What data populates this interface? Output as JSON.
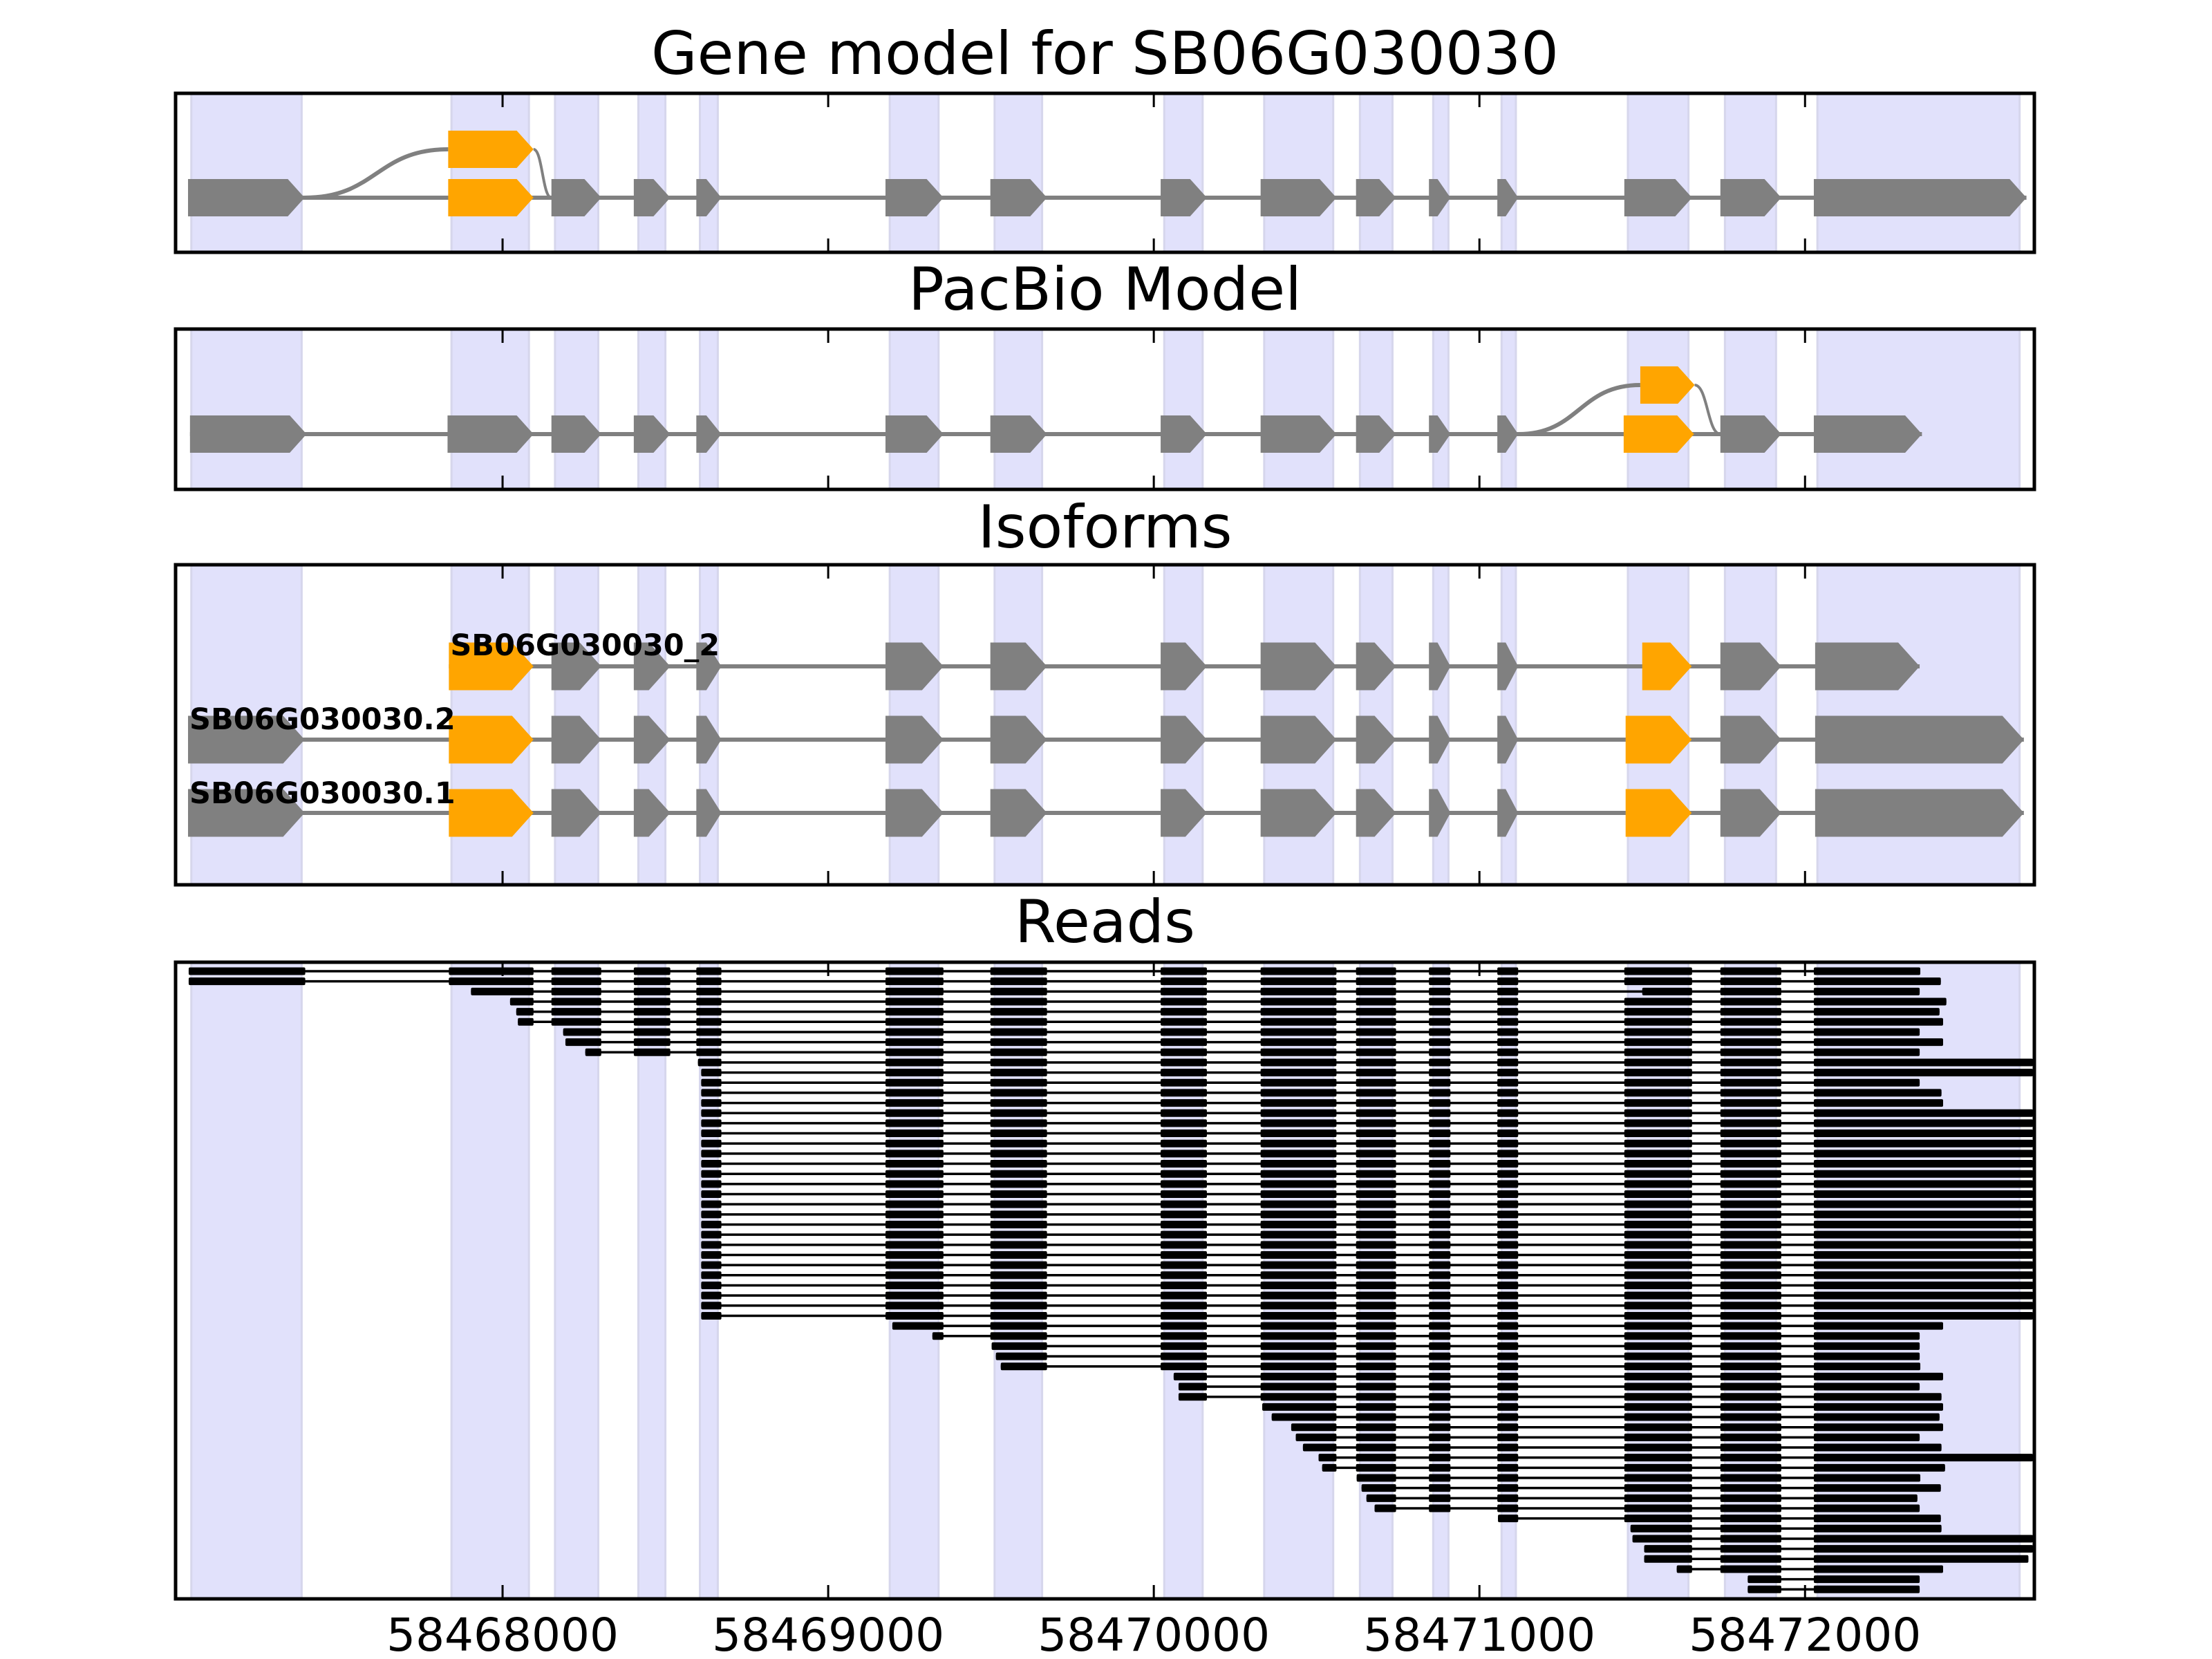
{
  "chart_data": {
    "type": "gene-structure",
    "xlim": [
      58467000,
      58472700
    ],
    "xticks": [
      58468000,
      58469000,
      58470000,
      58471000,
      58472000
    ],
    "xtick_labels": [
      "58468000",
      "58469000",
      "58470000",
      "58471000",
      "58472000"
    ],
    "colors": {
      "exon": "#808080",
      "alt_exon": "#ffa500",
      "intron": "#808080",
      "band": "#e1e1fb",
      "band_edge": "#d6d6ec",
      "read": "#000000",
      "frame": "#000000"
    },
    "exon_bands": [
      [
        58467044,
        58467383
      ],
      [
        58467843,
        58468081
      ],
      [
        58468161,
        58468294
      ],
      [
        58468417,
        58468500
      ],
      [
        58468606,
        58468661
      ],
      [
        58469189,
        58469339
      ],
      [
        58469511,
        58469657
      ],
      [
        58470032,
        58470150
      ],
      [
        58470339,
        58470551
      ],
      [
        58470633,
        58470733
      ],
      [
        58470858,
        58470905
      ],
      [
        58471068,
        58471112
      ],
      [
        58471456,
        58471642
      ],
      [
        58471754,
        58471911
      ],
      [
        58472038,
        58472659
      ]
    ],
    "panels": [
      {
        "id": "gene-model",
        "title": "Gene model for SB06G030030",
        "main_track": {
          "exons": [
            [
              58467034,
              58467392,
              "exon"
            ],
            [
              58467833,
              58468095,
              "alt"
            ],
            [
              58468150,
              58468303,
              "exon"
            ],
            [
              58468403,
              58468515,
              "exon"
            ],
            [
              58468595,
              58468672,
              "exon"
            ],
            [
              58469176,
              58469354,
              "exon"
            ],
            [
              58469498,
              58469672,
              "exon"
            ],
            [
              58470021,
              58470163,
              "exon"
            ],
            [
              58470328,
              58470561,
              "exon"
            ],
            [
              58470621,
              58470744,
              "exon"
            ],
            [
              58470845,
              58470911,
              "exon"
            ],
            [
              58471055,
              58471119,
              "exon"
            ],
            [
              58471445,
              58471653,
              "exon"
            ],
            [
              58471740,
              58471927,
              "exon"
            ],
            [
              58472027,
              58472680,
              "exon"
            ]
          ]
        },
        "alt_event": {
          "exon": [
            58467833,
            58468095
          ],
          "from": 58467392,
          "to": 58468150
        }
      },
      {
        "id": "pacbio-model",
        "title": "PacBio Model",
        "main_track": {
          "exons": [
            [
              58467040,
              58467398,
              "exon"
            ],
            [
              58467831,
              58468095,
              "exon"
            ],
            [
              58468150,
              58468303,
              "exon"
            ],
            [
              58468403,
              58468515,
              "exon"
            ],
            [
              58468595,
              58468672,
              "exon"
            ],
            [
              58469176,
              58469354,
              "exon"
            ],
            [
              58469498,
              58469672,
              "exon"
            ],
            [
              58470021,
              58470163,
              "exon"
            ],
            [
              58470328,
              58470561,
              "exon"
            ],
            [
              58470621,
              58470744,
              "exon"
            ],
            [
              58470845,
              58470911,
              "exon"
            ],
            [
              58471055,
              58471119,
              "exon"
            ],
            [
              58471443,
              58471659,
              "alt"
            ],
            [
              58471740,
              58471927,
              "exon"
            ],
            [
              58472027,
              58472359,
              "exon"
            ]
          ]
        },
        "alt_event": {
          "exon": [
            58471494,
            58471661
          ],
          "from": 58471119,
          "to": 58471740
        }
      },
      {
        "id": "isoforms",
        "title": "Isoforms",
        "isoforms": [
          {
            "name": "SB06G030030_2",
            "exons": [
              [
                58467835,
                58468095,
                "alt"
              ],
              [
                58468150,
                58468303,
                "exon"
              ],
              [
                58468403,
                58468515,
                "exon"
              ],
              [
                58468595,
                58468672,
                "exon"
              ],
              [
                58469176,
                58469354,
                "exon"
              ],
              [
                58469498,
                58469672,
                "exon"
              ],
              [
                58470021,
                58470163,
                "exon"
              ],
              [
                58470328,
                58470561,
                "exon"
              ],
              [
                58470621,
                58470744,
                "exon"
              ],
              [
                58470845,
                58470911,
                "exon"
              ],
              [
                58471055,
                58471119,
                "exon"
              ],
              [
                58471500,
                58471652,
                "alt"
              ],
              [
                58471740,
                58471927,
                "exon"
              ],
              [
                58472031,
                58472352,
                "exon"
              ]
            ]
          },
          {
            "name": "SB06G030030.2",
            "exons": [
              [
                58467034,
                58467392,
                "exon"
              ],
              [
                58467835,
                58468095,
                "alt"
              ],
              [
                58468150,
                58468303,
                "exon"
              ],
              [
                58468403,
                58468515,
                "exon"
              ],
              [
                58468595,
                58468672,
                "exon"
              ],
              [
                58469176,
                58469354,
                "exon"
              ],
              [
                58469498,
                58469672,
                "exon"
              ],
              [
                58470021,
                58470163,
                "exon"
              ],
              [
                58470328,
                58470561,
                "exon"
              ],
              [
                58470621,
                58470744,
                "exon"
              ],
              [
                58470845,
                58470911,
                "exon"
              ],
              [
                58471055,
                58471119,
                "exon"
              ],
              [
                58471449,
                58471652,
                "alt"
              ],
              [
                58471740,
                58471927,
                "exon"
              ],
              [
                58472031,
                58472672,
                "exon"
              ]
            ]
          },
          {
            "name": "SB06G030030.1",
            "exons": [
              [
                58467034,
                58467392,
                "exon"
              ],
              [
                58467835,
                58468095,
                "alt"
              ],
              [
                58468150,
                58468303,
                "exon"
              ],
              [
                58468403,
                58468515,
                "exon"
              ],
              [
                58468595,
                58468672,
                "exon"
              ],
              [
                58469176,
                58469354,
                "exon"
              ],
              [
                58469498,
                58469672,
                "exon"
              ],
              [
                58470021,
                58470163,
                "exon"
              ],
              [
                58470328,
                58470561,
                "exon"
              ],
              [
                58470621,
                58470744,
                "exon"
              ],
              [
                58470845,
                58470911,
                "exon"
              ],
              [
                58471055,
                58471119,
                "exon"
              ],
              [
                58471449,
                58471652,
                "alt"
              ],
              [
                58471740,
                58471927,
                "exon"
              ],
              [
                58472031,
                58472672,
                "exon"
              ]
            ]
          }
        ]
      },
      {
        "id": "reads",
        "title": "Reads",
        "read_blocks": [
          [
            58467036,
            58467394
          ],
          [
            58467835,
            58468095
          ],
          [
            58468150,
            58468303
          ],
          [
            58468403,
            58468515
          ],
          [
            58468595,
            58468672
          ],
          [
            58469176,
            58469354
          ],
          [
            58469498,
            58469672
          ],
          [
            58470021,
            58470163
          ],
          [
            58470328,
            58470561
          ],
          [
            58470621,
            58470744
          ],
          [
            58470845,
            58470911
          ],
          [
            58471055,
            58471119
          ],
          [
            58471445,
            58471653
          ],
          [
            58471740,
            58471927
          ],
          [
            58472027,
            58472700
          ]
        ],
        "reads": [
          [
            58467036,
            58472354
          ],
          [
            58467036,
            58472417
          ],
          [
            58467903,
            58472352,
            "alt13"
          ],
          [
            58468023,
            58472434
          ],
          [
            58468042,
            58472413
          ],
          [
            58468047,
            58472424
          ],
          [
            58468186,
            58472352
          ],
          [
            58468193,
            58472424
          ],
          [
            58468254,
            58472352
          ],
          [
            58468600,
            58472700
          ],
          [
            58468610,
            58472700
          ],
          [
            58468610,
            58472352
          ],
          [
            58468610,
            58472419
          ],
          [
            58468610,
            58472424
          ],
          [
            58468610,
            58472700
          ],
          [
            58468610,
            58472700
          ],
          [
            58468610,
            58472700
          ],
          [
            58468610,
            58472700
          ],
          [
            58468610,
            58472700
          ],
          [
            58468610,
            58472700
          ],
          [
            58468610,
            58472700
          ],
          [
            58468610,
            58472700
          ],
          [
            58468610,
            58472700
          ],
          [
            58468610,
            58472700
          ],
          [
            58468610,
            58472700
          ],
          [
            58468610,
            58472700
          ],
          [
            58468610,
            58472700
          ],
          [
            58468610,
            58472700
          ],
          [
            58468610,
            58472700
          ],
          [
            58468610,
            58472700
          ],
          [
            58468610,
            58472700
          ],
          [
            58468610,
            58472700
          ],
          [
            58468610,
            58472700
          ],
          [
            58468610,
            58472700
          ],
          [
            58468610,
            58472700
          ],
          [
            58469197,
            58472424
          ],
          [
            58469320,
            58472352
          ],
          [
            58469502,
            58472352
          ],
          [
            58469515,
            58472352
          ],
          [
            58469530,
            58472354
          ],
          [
            58470061,
            58472424
          ],
          [
            58470076,
            58472352
          ],
          [
            58470076,
            58472419
          ],
          [
            58470333,
            58472424
          ],
          [
            58470362,
            58472413
          ],
          [
            58470422,
            58472424
          ],
          [
            58470436,
            58472352
          ],
          [
            58470458,
            58472419
          ],
          [
            58470506,
            58472700
          ],
          [
            58470517,
            58472430
          ],
          [
            58470623,
            58472354
          ],
          [
            58470638,
            58472417
          ],
          [
            58470653,
            58472345
          ],
          [
            58470678,
            58472352
          ],
          [
            58471057,
            58472417
          ],
          [
            58471464,
            58472419
          ],
          [
            58471470,
            58472700
          ],
          [
            58471506,
            58472700
          ],
          [
            58471506,
            58472686
          ],
          [
            58471606,
            58472424
          ],
          [
            58471824,
            58472352
          ],
          [
            58471824,
            58472352
          ]
        ]
      }
    ]
  }
}
